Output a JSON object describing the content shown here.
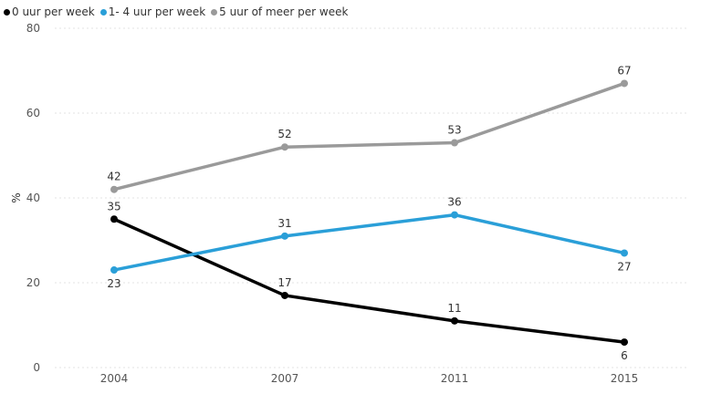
{
  "chart_data": {
    "type": "line",
    "title": "",
    "xlabel": "",
    "ylabel": "%",
    "ylim": [
      0,
      80
    ],
    "yticks": [
      0,
      20,
      40,
      60,
      80
    ],
    "grid": true,
    "legend_position": "top-left",
    "categories": [
      "2004",
      "2007",
      "2011",
      "2015"
    ],
    "series": [
      {
        "name": "0 uur per week",
        "color": "#000000",
        "values": [
          35,
          17,
          11,
          6
        ],
        "value_labels": [
          "35",
          "17",
          "11",
          "6"
        ],
        "label_side": [
          "above",
          "above",
          "above",
          "below"
        ]
      },
      {
        "name": "1- 4 uur per week",
        "color": "#2a9fd8",
        "values": [
          23,
          31,
          36,
          27
        ],
        "value_labels": [
          "23",
          "31",
          "36",
          "27"
        ],
        "label_side": [
          "below",
          "above",
          "above",
          "below"
        ]
      },
      {
        "name": "5 uur of meer per week",
        "color": "#9a9a9a",
        "values": [
          42,
          52,
          53,
          67
        ],
        "value_labels": [
          "42",
          "52",
          "53",
          "67"
        ],
        "label_side": [
          "above",
          "above",
          "above",
          "above"
        ]
      }
    ]
  }
}
